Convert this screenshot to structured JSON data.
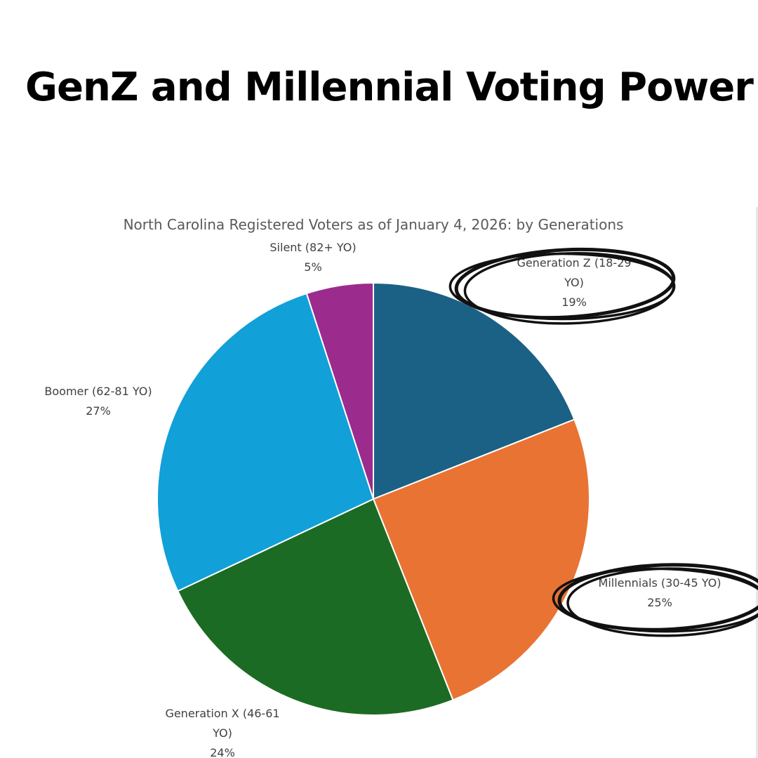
{
  "headline": "GenZ and Millennial Voting Power",
  "chart_data": {
    "type": "pie",
    "title": "North Carolina Registered Voters as of January 4, 2026: by Generations",
    "start_angle_deg": 0,
    "direction": "clockwise",
    "slices": [
      {
        "name": "Generation Z (18-29 YO)",
        "label_lines": [
          "Generation Z (18-29",
          "YO)"
        ],
        "percent_label": "19%",
        "value": 19,
        "color": "#1a6185",
        "highlighted": true
      },
      {
        "name": "Millennials (30-45 YO)",
        "label_lines": [
          "Millennials (30-45 YO)"
        ],
        "percent_label": "25%",
        "value": 25,
        "color": "#e97333",
        "highlighted": true
      },
      {
        "name": "Generation X (46-61 YO)",
        "label_lines": [
          "Generation X (46-61",
          "YO)"
        ],
        "percent_label": "24%",
        "value": 24,
        "color": "#1c6b24",
        "highlighted": false
      },
      {
        "name": "Boomer (62-81 YO)",
        "label_lines": [
          "Boomer (62-81 YO)"
        ],
        "percent_label": "27%",
        "value": 27,
        "color": "#11a0d8",
        "highlighted": false
      },
      {
        "name": "Silent (82+ YO)",
        "label_lines": [
          "Silent (82+ YO)"
        ],
        "percent_label": "5%",
        "value": 5,
        "color": "#9c2b8e",
        "highlighted": false
      }
    ]
  }
}
